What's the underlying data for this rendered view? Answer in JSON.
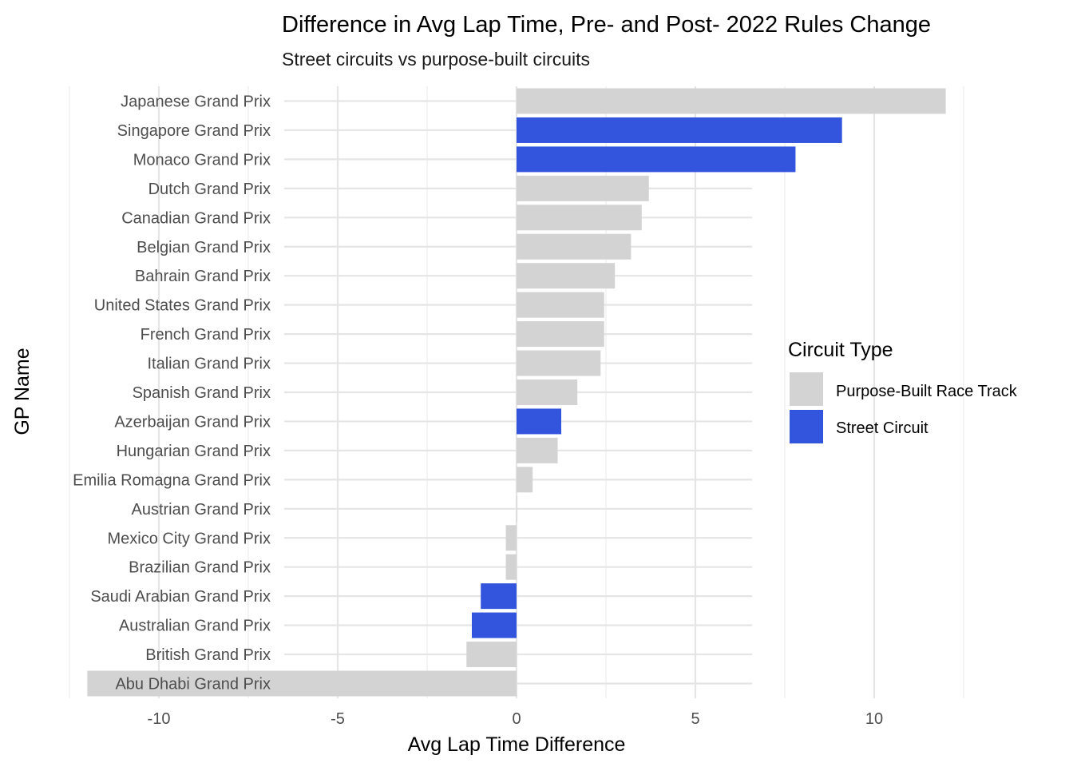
{
  "chart_data": {
    "type": "bar",
    "orientation": "horizontal",
    "title": "Difference in Avg Lap Time, Pre- and Post- 2022 Rules Change",
    "subtitle": "Street circuits vs purpose-built circuits",
    "xlabel": "Avg Lap Time Difference",
    "ylabel": "GP Name",
    "xlim": [
      -12.5,
      13
    ],
    "xticks": [
      -10,
      -5,
      0,
      5,
      10
    ],
    "xtick_labels": [
      "-10",
      "-5",
      "0",
      "5",
      "10"
    ],
    "grid": true,
    "legend": {
      "title": "Circuit Type",
      "position": "right",
      "entries": [
        {
          "name": "Purpose-Built Race Track",
          "color": "#d3d3d3"
        },
        {
          "name": "Street Circuit",
          "color": "#3355dd"
        }
      ]
    },
    "bars": [
      {
        "category": "Japanese Grand Prix",
        "value": 12.0,
        "type": "Purpose-Built Race Track"
      },
      {
        "category": "Singapore Grand Prix",
        "value": 9.1,
        "type": "Street Circuit"
      },
      {
        "category": "Monaco Grand Prix",
        "value": 7.8,
        "type": "Street Circuit"
      },
      {
        "category": "Dutch Grand Prix",
        "value": 3.7,
        "type": "Purpose-Built Race Track"
      },
      {
        "category": "Canadian Grand Prix",
        "value": 3.5,
        "type": "Purpose-Built Race Track"
      },
      {
        "category": "Belgian Grand Prix",
        "value": 3.2,
        "type": "Purpose-Built Race Track"
      },
      {
        "category": "Bahrain Grand Prix",
        "value": 2.75,
        "type": "Purpose-Built Race Track"
      },
      {
        "category": "United States Grand Prix",
        "value": 2.45,
        "type": "Purpose-Built Race Track"
      },
      {
        "category": "French Grand Prix",
        "value": 2.45,
        "type": "Purpose-Built Race Track"
      },
      {
        "category": "Italian Grand Prix",
        "value": 2.35,
        "type": "Purpose-Built Race Track"
      },
      {
        "category": "Spanish Grand Prix",
        "value": 1.7,
        "type": "Purpose-Built Race Track"
      },
      {
        "category": "Azerbaijan Grand Prix",
        "value": 1.25,
        "type": "Street Circuit"
      },
      {
        "category": "Hungarian Grand Prix",
        "value": 1.15,
        "type": "Purpose-Built Race Track"
      },
      {
        "category": "Emilia Romagna Grand Prix",
        "value": 0.45,
        "type": "Purpose-Built Race Track"
      },
      {
        "category": "Austrian Grand Prix",
        "value": 0.02,
        "type": "Purpose-Built Race Track"
      },
      {
        "category": "Mexico City Grand Prix",
        "value": -0.3,
        "type": "Purpose-Built Race Track"
      },
      {
        "category": "Brazilian Grand Prix",
        "value": -0.3,
        "type": "Purpose-Built Race Track"
      },
      {
        "category": "Saudi Arabian Grand Prix",
        "value": -1.0,
        "type": "Street Circuit"
      },
      {
        "category": "Australian Grand Prix",
        "value": -1.25,
        "type": "Street Circuit"
      },
      {
        "category": "British Grand Prix",
        "value": -1.4,
        "type": "Purpose-Built Race Track"
      },
      {
        "category": "Abu Dhabi Grand Prix",
        "value": -12.0,
        "type": "Purpose-Built Race Track"
      }
    ]
  }
}
